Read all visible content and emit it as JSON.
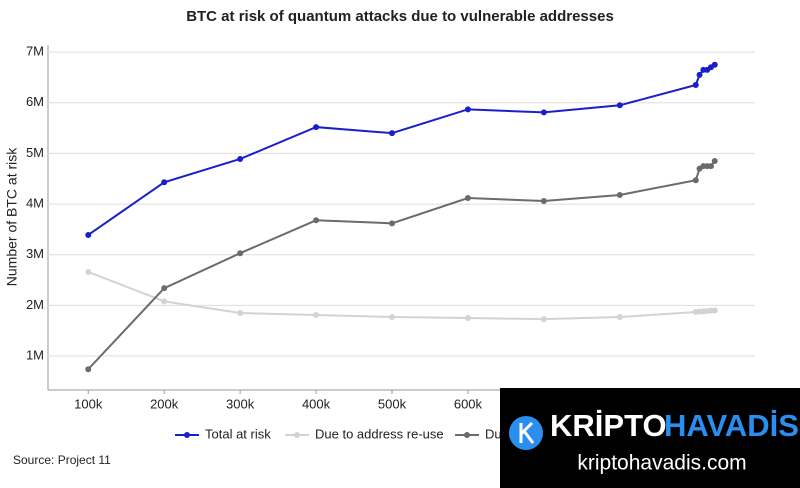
{
  "chart_data": {
    "type": "line",
    "title": "BTC at risk of quantum attacks due to vulnerable addresses",
    "y_label": "Number of BTC at risk",
    "source": "Source: Project 11",
    "x": [
      100000,
      200000,
      300000,
      400000,
      500000,
      600000,
      700000,
      800000,
      900000,
      905000,
      910000,
      915000,
      920000,
      925000
    ],
    "series": [
      {
        "name": "Total at risk",
        "color": "#1a1fc9",
        "values": [
          3390000,
          4430000,
          4890000,
          5520000,
          5400000,
          5870000,
          5810000,
          5950000,
          6350000,
          6550000,
          6650000,
          6650000,
          6700000,
          6750000
        ]
      },
      {
        "name": "Due to address re-use",
        "color": "#d3d3d3",
        "values": [
          2660000,
          2080000,
          1850000,
          1810000,
          1770000,
          1750000,
          1730000,
          1770000,
          1870000,
          1880000,
          1880000,
          1890000,
          1900000,
          1900000
        ]
      },
      {
        "name": "Due",
        "color": "#6b6b6b",
        "values": [
          740000,
          2340000,
          3030000,
          3680000,
          3620000,
          4120000,
          4060000,
          4180000,
          4470000,
          4700000,
          4750000,
          4750000,
          4750000,
          4850000
        ]
      }
    ],
    "xlim": [
      47000,
      978000
    ],
    "xticks": [
      {
        "value": 100000,
        "label": "100k"
      },
      {
        "value": 200000,
        "label": "200k"
      },
      {
        "value": 300000,
        "label": "300k"
      },
      {
        "value": 400000,
        "label": "400k"
      },
      {
        "value": 500000,
        "label": "500k"
      },
      {
        "value": 600000,
        "label": "600k"
      }
    ],
    "ylim": [
      330000,
      7140000
    ],
    "yticks": [
      {
        "value": 1000000,
        "label": "1M"
      },
      {
        "value": 2000000,
        "label": "2M"
      },
      {
        "value": 3000000,
        "label": "3M"
      },
      {
        "value": 4000000,
        "label": "4M"
      },
      {
        "value": 5000000,
        "label": "5M"
      },
      {
        "value": 6000000,
        "label": "6M"
      },
      {
        "value": 7000000,
        "label": "7M"
      }
    ],
    "grid": true
  },
  "watermark": {
    "brand_left": "KRİPTO",
    "brand_right": "HAVADİS",
    "url": "kriptohavadis.com"
  }
}
